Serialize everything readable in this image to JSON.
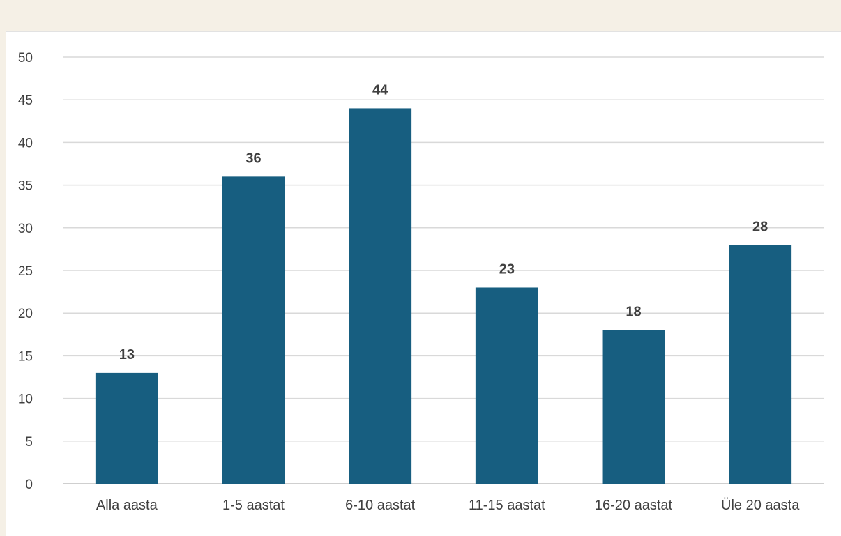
{
  "chart_data": {
    "type": "bar",
    "title": "",
    "xlabel": "",
    "ylabel": "",
    "categories": [
      "Alla aasta",
      "1-5 aastat",
      "6-10 aastat",
      "11-15 aastat",
      "16-20 aastat",
      "Üle 20 aasta"
    ],
    "values": [
      13,
      36,
      44,
      23,
      18,
      28
    ],
    "ylim": [
      0,
      50
    ],
    "yticks": [
      0,
      5,
      10,
      15,
      20,
      25,
      30,
      35,
      40,
      45,
      50
    ],
    "grid": true,
    "legend": "none",
    "data_labels": true,
    "bar_color": "#175e80"
  }
}
